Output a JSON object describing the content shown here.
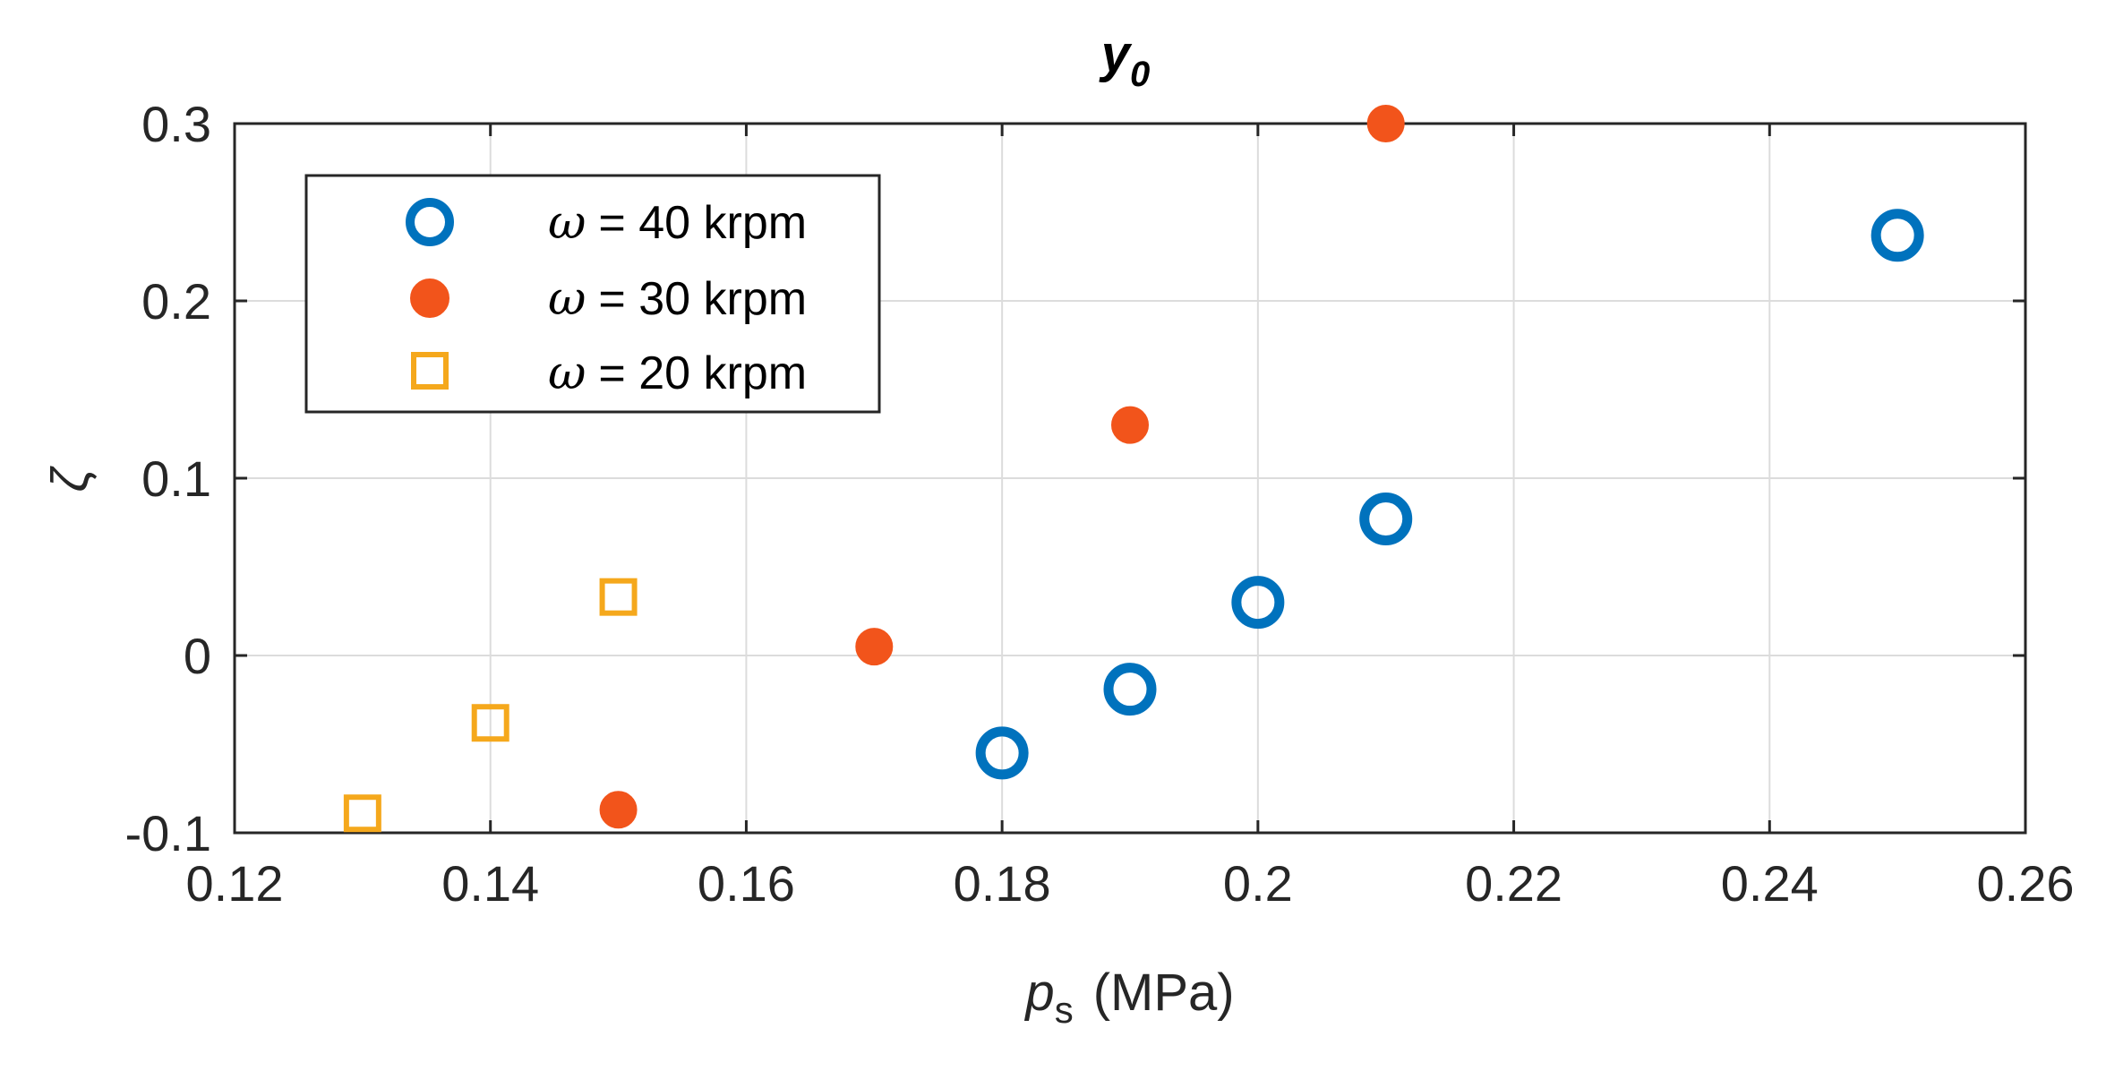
{
  "chart_data": {
    "type": "scatter",
    "title": "y",
    "title_subscript": "0",
    "xlabel": "p",
    "xlabel_subscript": "s",
    "xlabel_unit": "(MPa)",
    "ylabel": "ζ",
    "xlim": [
      0.12,
      0.26
    ],
    "ylim": [
      -0.1,
      0.3
    ],
    "xticks": [
      0.12,
      0.14,
      0.16,
      0.18,
      0.2,
      0.22,
      0.24,
      0.26
    ],
    "xtick_labels": [
      "0.12",
      "0.14",
      "0.16",
      "0.18",
      "0.2",
      "0.22",
      "0.24",
      "0.26"
    ],
    "yticks": [
      -0.1,
      0,
      0.1,
      0.2,
      0.3
    ],
    "ytick_labels": [
      "-0.1",
      "0",
      "0.1",
      "0.2",
      "0.3"
    ],
    "grid": true,
    "legend_position": "top-left",
    "series": [
      {
        "name": "ω = 40 krpm",
        "omega_symbol": "ω",
        "legend_text": "= 40 krpm",
        "marker": "open-circle",
        "color": "#0072BD",
        "x": [
          0.18,
          0.19,
          0.2,
          0.21,
          0.25
        ],
        "y": [
          -0.055,
          -0.019,
          0.03,
          0.077,
          0.237
        ]
      },
      {
        "name": "ω = 30 krpm",
        "omega_symbol": "ω",
        "legend_text": "= 30 krpm",
        "marker": "filled-circle",
        "color": "#F2541B",
        "x": [
          0.15,
          0.17,
          0.19,
          0.21
        ],
        "y": [
          -0.087,
          0.005,
          0.13,
          0.3
        ]
      },
      {
        "name": "ω = 20 krpm",
        "omega_symbol": "ω",
        "legend_text": "= 20 krpm",
        "marker": "open-square",
        "color": "#F5A81C",
        "x": [
          0.13,
          0.14,
          0.15
        ],
        "y": [
          -0.089,
          -0.038,
          0.033
        ]
      }
    ]
  }
}
